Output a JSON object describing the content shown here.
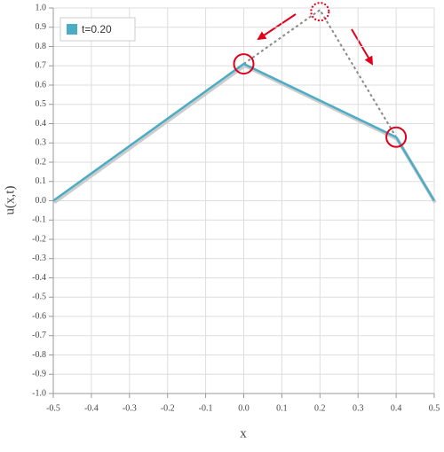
{
  "chart_data": {
    "type": "line",
    "xlabel": "x",
    "ylabel": "u(x,t)",
    "series": [
      {
        "name": "t=0.20",
        "color": "#4bacc6",
        "x": [
          -0.5,
          0,
          0.4,
          0.5
        ],
        "values": [
          0,
          0.71,
          0.33,
          0
        ]
      }
    ],
    "guide": {
      "color": "#888888",
      "x": [
        0,
        0.2,
        0.4
      ],
      "values": [
        0.71,
        0.99,
        0.33
      ]
    },
    "marker_color": "#e0001b",
    "xlim": [
      -0.5,
      0.5
    ],
    "xticks": [
      -0.5,
      -0.4,
      -0.3,
      -0.2,
      -0.1,
      {
        "value": 0,
        "label": "0.0"
      },
      0.1,
      0.2,
      0.3,
      0.4,
      0.5
    ],
    "ylim": [
      -1,
      1
    ],
    "yticks": [
      {
        "value": 1,
        "label": "1.0"
      },
      0.9,
      0.8,
      0.7,
      0.6,
      0.5,
      0.4,
      0.3,
      0.2,
      0.1,
      {
        "value": 0,
        "label": "0.0"
      },
      -0.1,
      -0.2,
      -0.3,
      -0.4,
      -0.5,
      -0.6,
      -0.7,
      -0.8,
      -0.9,
      {
        "value": -1,
        "label": "-1.0"
      }
    ],
    "grid": true,
    "legend": "upper left"
  }
}
